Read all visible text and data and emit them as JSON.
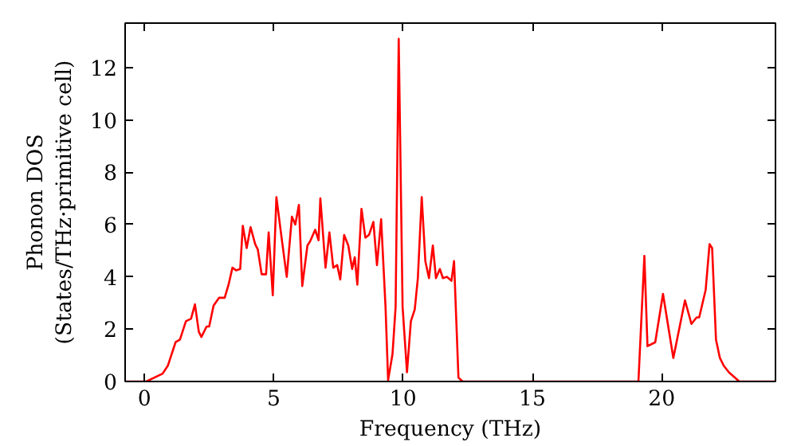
{
  "chart_data": {
    "type": "line",
    "xlabel": "Frequency (THz)",
    "ylabel": "Phonon DOS\n(States/THz·primitive cell)",
    "xlim": [
      -0.75,
      24.4
    ],
    "ylim": [
      0,
      13.7
    ],
    "xticks": [
      0,
      5,
      10,
      15,
      20
    ],
    "yticks": [
      0,
      2,
      4,
      6,
      8,
      10,
      12
    ],
    "grid": false,
    "line_style": "solid",
    "series": [
      {
        "color": "#ff0000",
        "x": [
          -0.75,
          0.07,
          0.7,
          0.9,
          1.2,
          1.37,
          1.6,
          1.8,
          1.95,
          2.1,
          2.2,
          2.4,
          2.5,
          2.67,
          2.88,
          3.1,
          3.25,
          3.4,
          3.54,
          3.7,
          3.8,
          3.95,
          4.1,
          4.28,
          4.38,
          4.53,
          4.7,
          4.8,
          4.96,
          5.1,
          5.3,
          5.5,
          5.7,
          5.83,
          5.97,
          6.1,
          6.3,
          6.4,
          6.6,
          6.73,
          6.8,
          7.0,
          7.15,
          7.3,
          7.45,
          7.57,
          7.72,
          7.88,
          8.03,
          8.13,
          8.23,
          8.39,
          8.54,
          8.68,
          8.85,
          8.99,
          9.15,
          9.32,
          9.42,
          9.59,
          9.71,
          9.83,
          9.98,
          10.15,
          10.3,
          10.45,
          10.57,
          10.72,
          10.86,
          11.0,
          11.15,
          11.27,
          11.42,
          11.54,
          11.69,
          11.87,
          11.97,
          12.14,
          12.3,
          19.1,
          19.33,
          19.45,
          19.75,
          20.05,
          20.45,
          20.9,
          21.15,
          21.35,
          21.45,
          21.7,
          21.85,
          21.95,
          22.1,
          22.25,
          22.4,
          22.6,
          23.0,
          24.4
        ],
        "values": [
          0,
          0,
          0.3,
          0.6,
          1.5,
          1.6,
          2.3,
          2.4,
          2.95,
          1.9,
          1.7,
          2.1,
          2.1,
          2.9,
          3.2,
          3.2,
          3.7,
          4.35,
          4.25,
          4.3,
          5.95,
          5.1,
          5.9,
          5.25,
          5.05,
          4.1,
          4.1,
          5.7,
          3.3,
          7.05,
          5.5,
          4.0,
          6.3,
          6.0,
          6.75,
          3.65,
          5.2,
          5.35,
          5.8,
          5.4,
          7.0,
          4.35,
          5.7,
          4.35,
          4.45,
          3.9,
          5.6,
          5.2,
          4.3,
          4.75,
          3.7,
          6.6,
          5.5,
          5.6,
          6.1,
          4.45,
          6.2,
          2.85,
          0.05,
          1.05,
          2.85,
          13.1,
          2.85,
          0.35,
          2.3,
          2.75,
          3.95,
          7.05,
          4.6,
          3.95,
          5.2,
          3.95,
          4.3,
          3.95,
          4.0,
          3.85,
          4.6,
          0.15,
          0,
          0,
          4.8,
          1.35,
          1.5,
          3.35,
          0.9,
          3.1,
          2.2,
          2.45,
          2.45,
          3.5,
          5.25,
          5.1,
          1.6,
          0.9,
          0.6,
          0.35,
          0,
          0
        ]
      }
    ]
  }
}
